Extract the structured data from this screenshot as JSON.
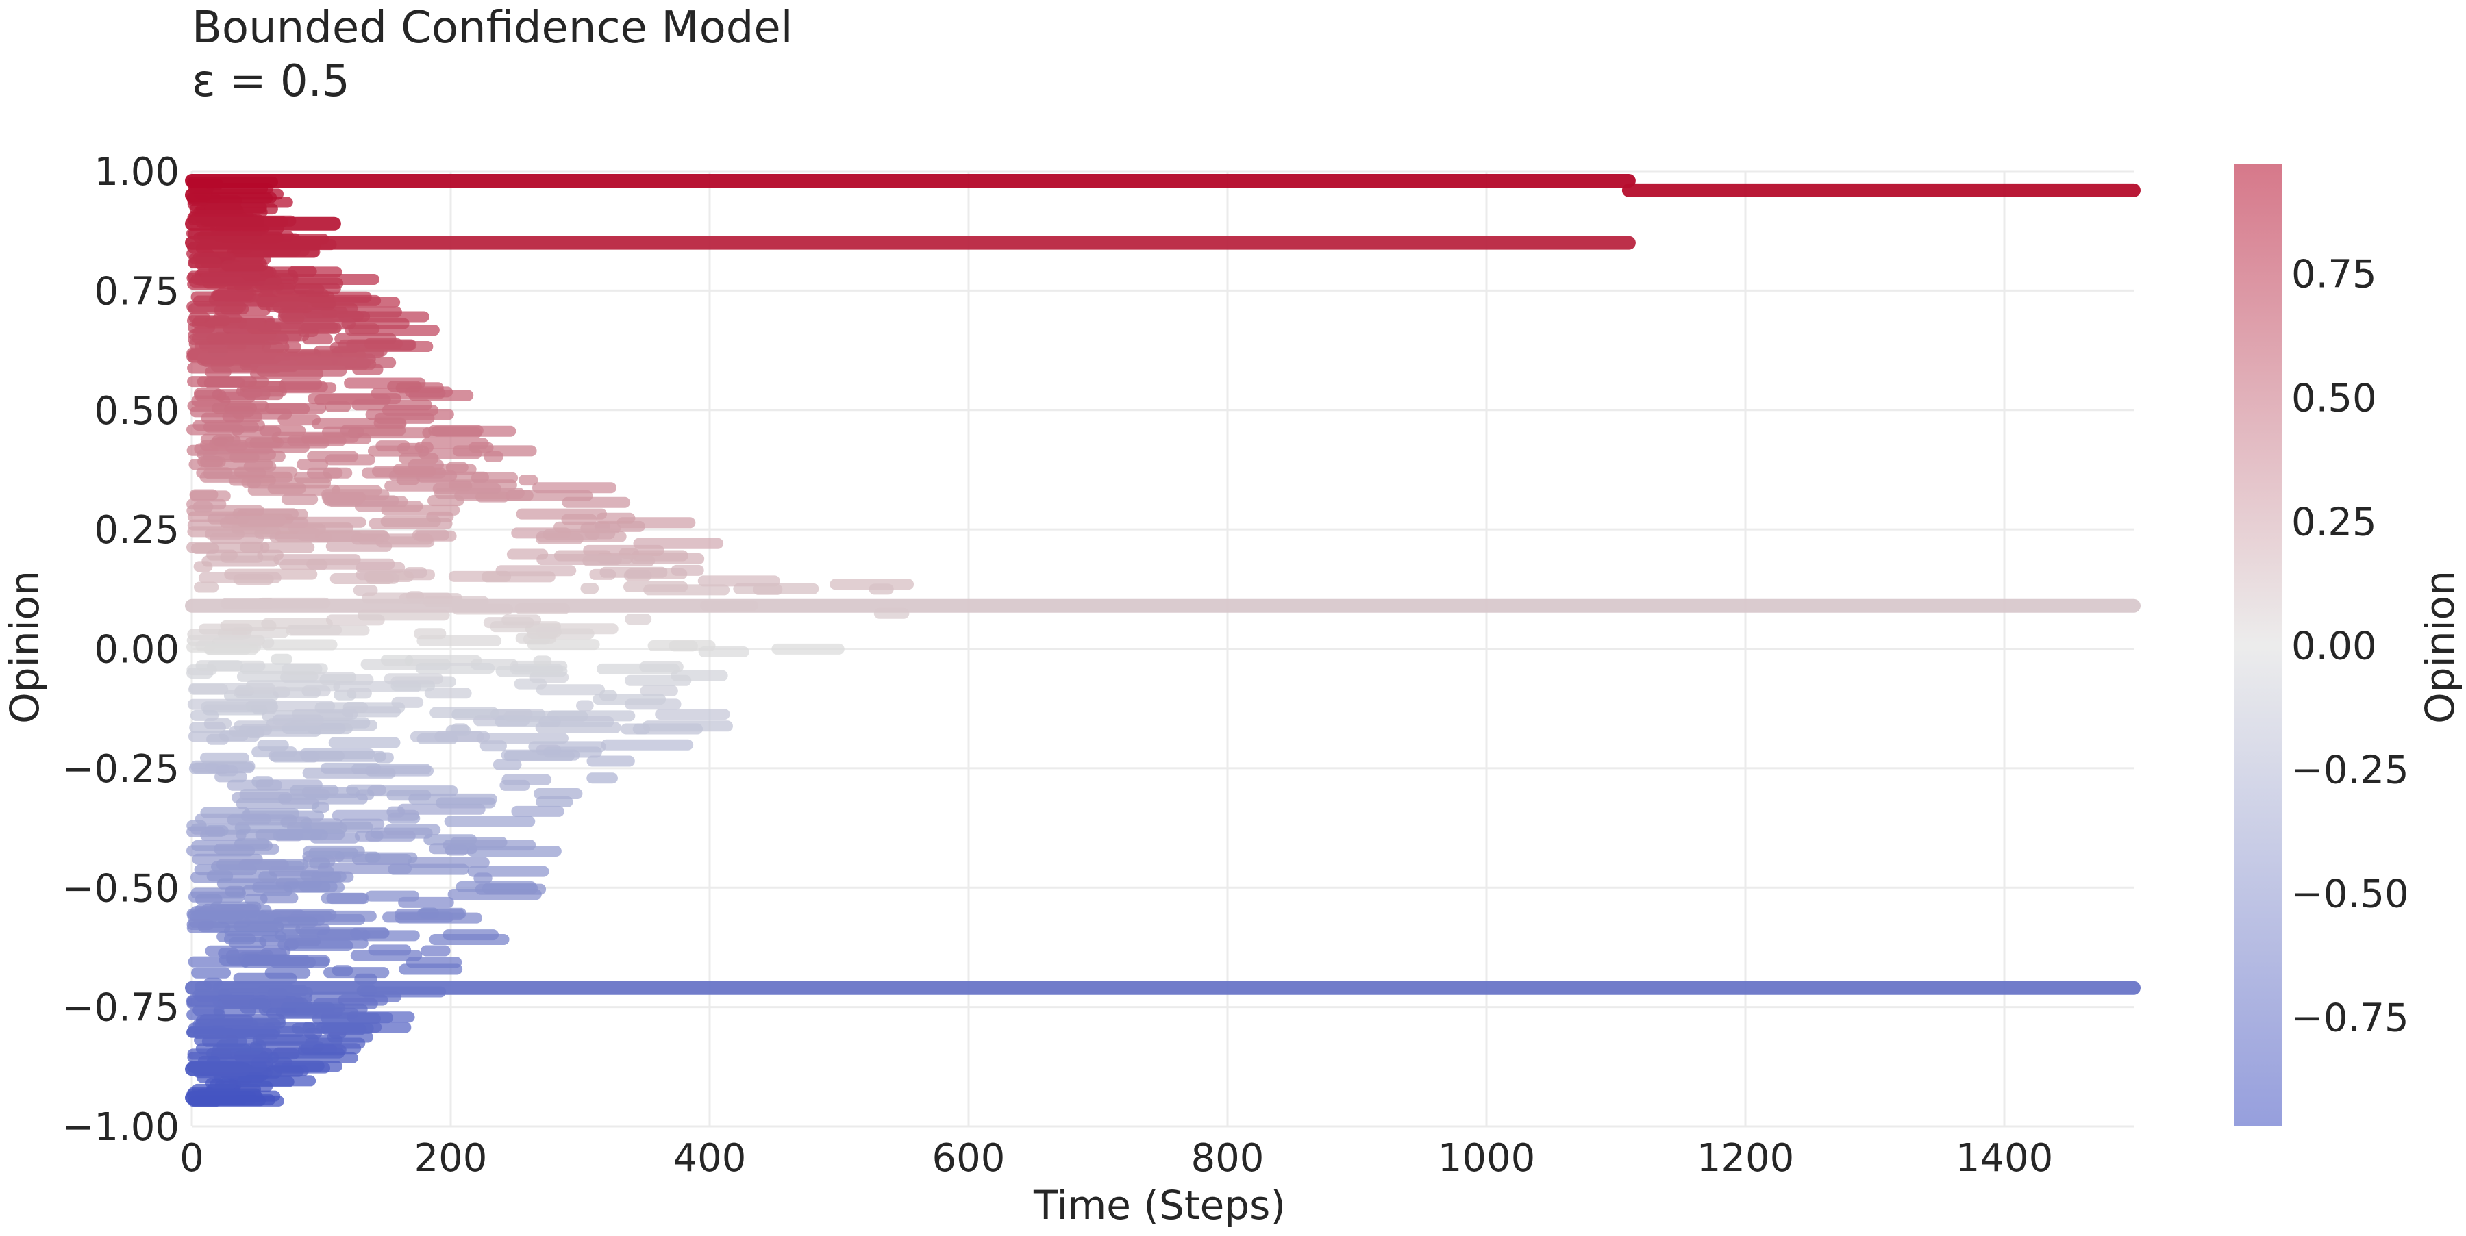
{
  "title": "Bounded Confidence Model",
  "subtitle": "ε = 0.5",
  "chart_data": {
    "type": "scatter",
    "title": "Bounded Confidence Model",
    "subtitle": "ε = 0.5",
    "xlabel": "Time (Steps)",
    "ylabel": "Opinion",
    "xlim": [
      0,
      1500
    ],
    "ylim": [
      -1.0,
      1.0
    ],
    "x_ticks": [
      "0",
      "200",
      "400",
      "600",
      "800",
      "1000",
      "1200",
      "1400"
    ],
    "y_ticks": [
      "1.00",
      "0.75",
      "0.50",
      "0.25",
      "0.00",
      "−0.25",
      "−0.50",
      "−0.75",
      "−1.00"
    ],
    "grid": true,
    "colormap": "coolwarm",
    "colorbar": {
      "label": "Opinion",
      "range": [
        -0.97,
        0.97
      ],
      "ticks": [
        "0.75",
        "0.50",
        "0.25",
        "0.00",
        "−0.25",
        "−0.50",
        "−0.75"
      ]
    },
    "clusters": [
      {
        "y": 0.98,
        "x": [
          0,
          1110
        ]
      },
      {
        "y": 0.96,
        "x": [
          1110,
          1500
        ]
      },
      {
        "y": 0.85,
        "x": [
          0,
          1110
        ]
      },
      {
        "y": 0.89,
        "x": [
          0,
          110
        ]
      },
      {
        "y": 0.95,
        "x": [
          0,
          10
        ]
      },
      {
        "y": 0.09,
        "x": [
          0,
          1500
        ]
      },
      {
        "y": -0.71,
        "x": [
          0,
          1500
        ]
      },
      {
        "y": -0.88,
        "x": [
          0,
          40
        ]
      },
      {
        "y": -0.94,
        "x": [
          0,
          45
        ]
      }
    ],
    "spread_envelope": [
      {
        "x": 0,
        "ymin": -0.95,
        "ymax": 0.98
      },
      {
        "x": 100,
        "ymin": -0.85,
        "ymax": 0.75
      },
      {
        "x": 200,
        "ymin": -0.6,
        "ymax": 0.45
      },
      {
        "x": 300,
        "ymin": -0.3,
        "ymax": 0.3
      },
      {
        "x": 400,
        "ymin": -0.05,
        "ymax": 0.2
      },
      {
        "x": 600,
        "ymin": 0.07,
        "ymax": 0.11
      },
      {
        "x": 700,
        "ymin": 0.085,
        "ymax": 0.095
      }
    ],
    "colors": {
      "min": "#3b4cc0",
      "mid": "#dddddd",
      "max": "#b40426"
    }
  }
}
